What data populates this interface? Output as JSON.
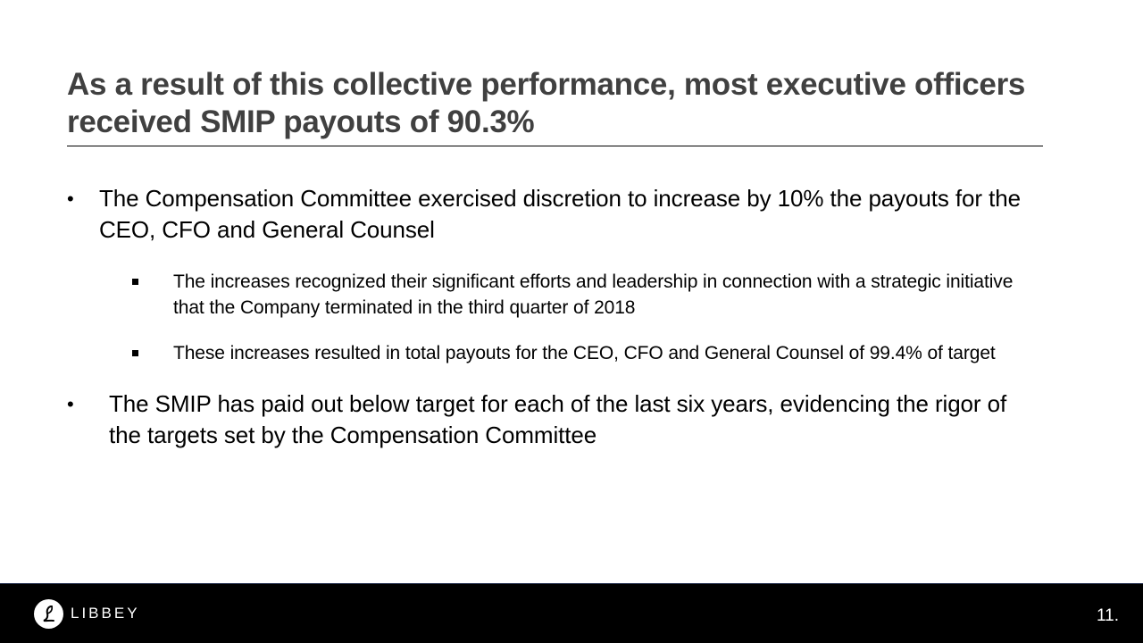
{
  "slide": {
    "title": "As a result of this collective performance, most executive officers received SMIP payouts of 90.3%",
    "bullets": [
      {
        "text": "The Compensation Committee exercised discretion to increase by 10% the payouts for the CEO, CFO and General Counsel",
        "sub_bullets": [
          "The increases recognized their significant efforts and leadership in connection with a strategic initiative that the Company terminated in the third quarter of 2018",
          "These increases resulted in total payouts for the CEO, CFO and General Counsel of 99.4% of target"
        ]
      },
      {
        "text": "The SMIP has paid out below target for each of the last six years, evidencing the rigor of the targets set by the Compensation Committee"
      }
    ],
    "bullet_glyph": "•"
  },
  "footer": {
    "logo_text": "LIBBEY",
    "logo_icon": "libbey-logo-icon",
    "page_number": "11.",
    "background_color": "#000000"
  },
  "colors": {
    "title": "#404040",
    "body_text": "#000000"
  }
}
